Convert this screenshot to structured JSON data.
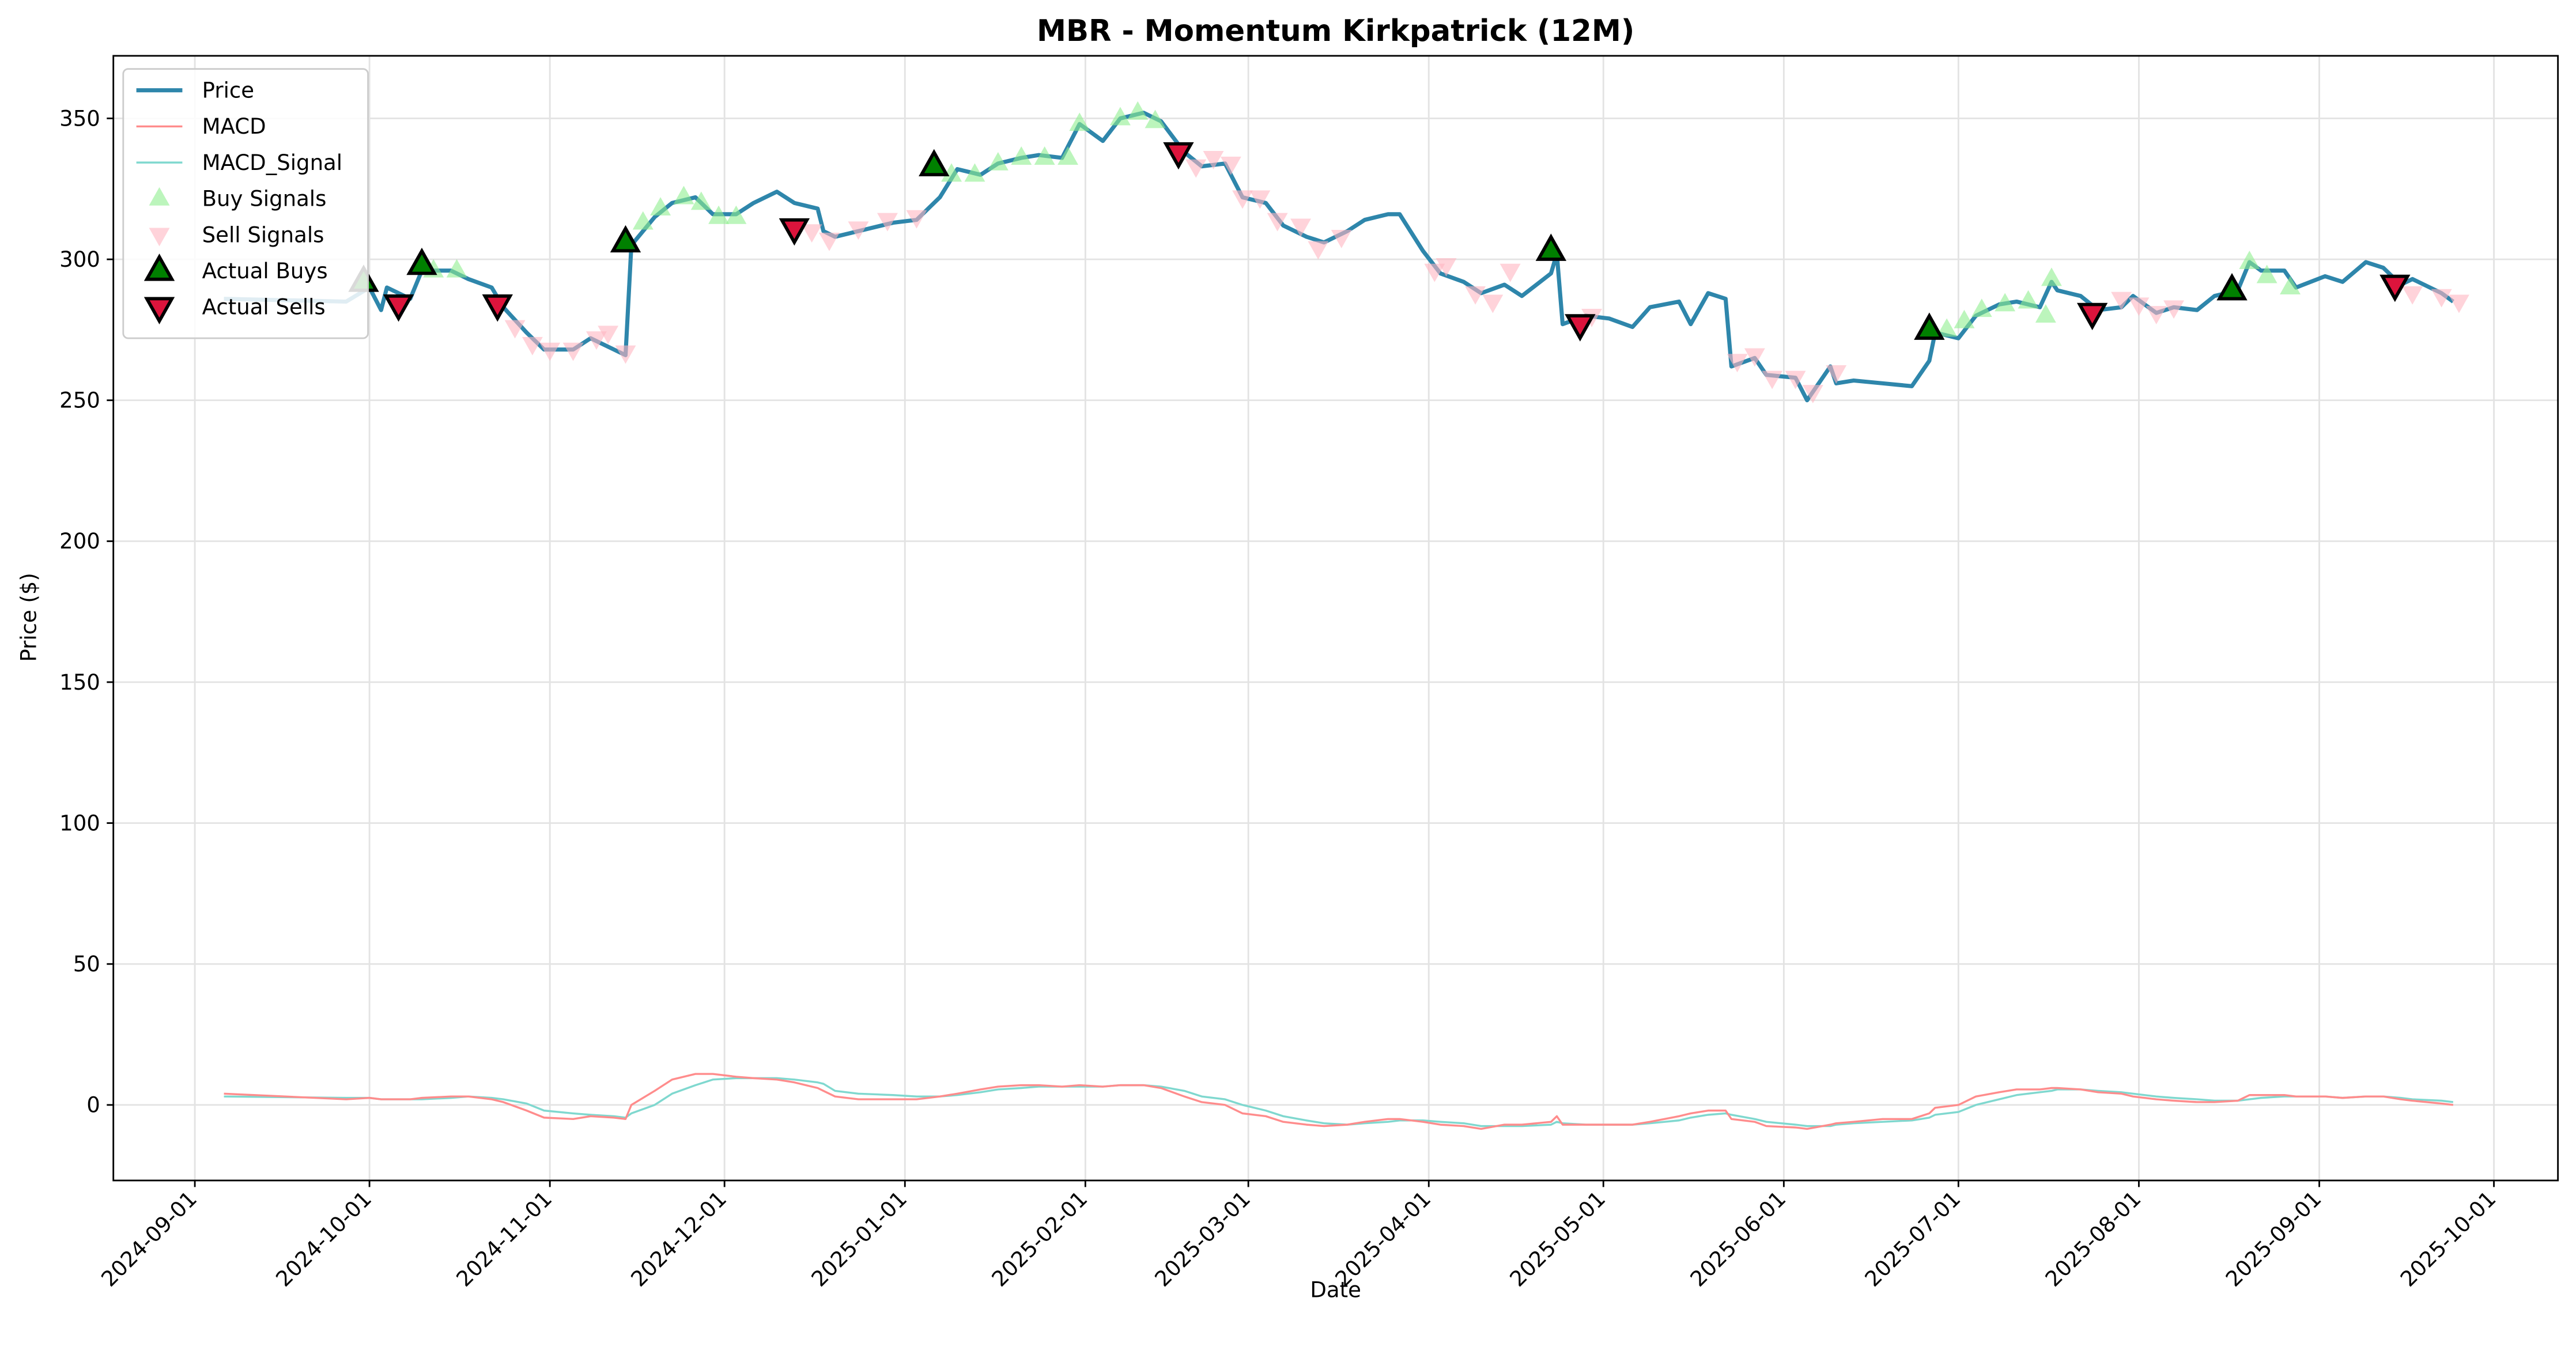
{
  "chart_data": {
    "type": "line",
    "title": "MBR - Momentum Kirkpatrick (12M)",
    "x_label": "Date",
    "y_label": "Price ($)",
    "grid": true,
    "legend": "upper left",
    "xlim": [
      "2024-08-18",
      "2025-10-12"
    ],
    "xticks": [
      "2024-09-01",
      "2024-10-01",
      "2024-11-01",
      "2024-12-01",
      "2025-01-01",
      "2025-02-01",
      "2025-03-01",
      "2025-04-01",
      "2025-05-01",
      "2025-06-01",
      "2025-07-01",
      "2025-08-01",
      "2025-09-01",
      "2025-10-01"
    ],
    "ylim": [
      -26.8,
      372.2
    ],
    "yticks": [
      0,
      50,
      100,
      150,
      200,
      250,
      300,
      350
    ],
    "x": [
      "2024-09-06",
      "2024-09-27",
      "2024-10-01",
      "2024-10-03",
      "2024-10-04",
      "2024-10-08",
      "2024-10-10",
      "2024-10-15",
      "2024-10-18",
      "2024-10-22",
      "2024-10-24",
      "2024-10-28",
      "2024-10-31",
      "2024-11-05",
      "2024-11-08",
      "2024-11-12",
      "2024-11-14",
      "2024-11-15",
      "2024-11-19",
      "2024-11-22",
      "2024-11-26",
      "2024-11-29",
      "2024-12-03",
      "2024-12-06",
      "2024-12-10",
      "2024-12-13",
      "2024-12-17",
      "2024-12-18",
      "2024-12-20",
      "2024-12-24",
      "2024-12-30",
      "2025-01-03",
      "2025-01-07",
      "2025-01-10",
      "2025-01-14",
      "2025-01-17",
      "2025-01-21",
      "2025-01-24",
      "2025-01-28",
      "2025-01-31",
      "2025-02-04",
      "2025-02-07",
      "2025-02-11",
      "2025-02-14",
      "2025-02-18",
      "2025-02-21",
      "2025-02-25",
      "2025-02-28",
      "2025-03-04",
      "2025-03-07",
      "2025-03-11",
      "2025-03-14",
      "2025-03-18",
      "2025-03-21",
      "2025-03-25",
      "2025-03-27",
      "2025-03-31",
      "2025-04-03",
      "2025-04-07",
      "2025-04-10",
      "2025-04-14",
      "2025-04-17",
      "2025-04-22",
      "2025-04-23",
      "2025-04-24",
      "2025-04-28",
      "2025-05-02",
      "2025-05-06",
      "2025-05-09",
      "2025-05-14",
      "2025-05-16",
      "2025-05-19",
      "2025-05-22",
      "2025-05-23",
      "2025-05-27",
      "2025-05-29",
      "2025-06-03",
      "2025-06-05",
      "2025-06-09",
      "2025-06-10",
      "2025-06-13",
      "2025-06-18",
      "2025-06-23",
      "2025-06-26",
      "2025-06-27",
      "2025-07-01",
      "2025-07-04",
      "2025-07-08",
      "2025-07-11",
      "2025-07-15",
      "2025-07-17",
      "2025-07-18",
      "2025-07-22",
      "2025-07-25",
      "2025-07-29",
      "2025-07-31",
      "2025-08-04",
      "2025-08-07",
      "2025-08-11",
      "2025-08-14",
      "2025-08-18",
      "2025-08-20",
      "2025-08-22",
      "2025-08-26",
      "2025-08-28",
      "2025-09-02",
      "2025-09-05",
      "2025-09-09",
      "2025-09-12",
      "2025-09-15",
      "2025-09-17",
      "2025-09-22",
      "2025-09-24"
    ],
    "series": [
      {
        "name": "Price",
        "color": "#2e86ab",
        "width": 2.5,
        "values": [
          286,
          285,
          290,
          282,
          290,
          286,
          296,
          296,
          293,
          290,
          283,
          274,
          268,
          268,
          272,
          268,
          266,
          305,
          315,
          320,
          322,
          316,
          316,
          320,
          324,
          320,
          318,
          310,
          308,
          310,
          313,
          314,
          322,
          332,
          330,
          334,
          336,
          337,
          336,
          348,
          342,
          350,
          352,
          349,
          338,
          333,
          334,
          322,
          320,
          312,
          308,
          306,
          310,
          314,
          316,
          316,
          303,
          295,
          292,
          288,
          291,
          287,
          295,
          302,
          277,
          280,
          279,
          276,
          283,
          285,
          277,
          288,
          286,
          262,
          265,
          259,
          258,
          250,
          262,
          256,
          257,
          256,
          255,
          264,
          274,
          272,
          280,
          284,
          285,
          283,
          292,
          289,
          287,
          282,
          283,
          287,
          281,
          283,
          282,
          287,
          289,
          299,
          296,
          296,
          290,
          294,
          292,
          299,
          297,
          291,
          293,
          288,
          285
        ]
      },
      {
        "name": "MACD",
        "color": "#ff8c8c",
        "width": 1.2,
        "values": [
          4,
          2,
          2.5,
          2,
          2,
          2,
          2.5,
          3,
          3,
          2,
          1,
          -2,
          -4.5,
          -5,
          -4,
          -4.5,
          -5,
          0,
          5,
          9,
          11,
          11,
          10,
          9.5,
          9,
          8,
          6,
          5,
          3,
          2,
          2,
          2,
          3,
          4,
          5.5,
          6.5,
          7,
          7,
          6.5,
          7,
          6.5,
          7,
          7,
          6,
          3,
          1,
          0,
          -3,
          -4,
          -6,
          -7,
          -7.5,
          -7,
          -6,
          -5,
          -5,
          -6,
          -7,
          -7.5,
          -8.5,
          -7,
          -7,
          -6,
          -4,
          -7,
          -7,
          -7,
          -7,
          -6,
          -4,
          -3,
          -2,
          -2,
          -5,
          -6,
          -7.5,
          -8,
          -8.5,
          -7,
          -6.5,
          -6,
          -5,
          -5,
          -3,
          -1,
          0,
          3,
          4.5,
          5.5,
          5.5,
          6,
          6,
          5.5,
          4.5,
          4,
          3,
          2,
          1.5,
          1,
          1,
          1.5,
          3.5,
          3.5,
          3.5,
          3,
          3,
          2.5,
          3,
          3,
          2,
          1.5,
          0.5,
          0
        ]
      },
      {
        "name": "MACD_Signal",
        "color": "#7fd8cf",
        "width": 1.2,
        "values": [
          3,
          2.5,
          2.5,
          2,
          2,
          2,
          2,
          2.5,
          3,
          2.5,
          2,
          0.5,
          -2,
          -3,
          -3.5,
          -4,
          -4.5,
          -3,
          0,
          4,
          7,
          9,
          9.5,
          9.5,
          9.5,
          9,
          8,
          7.5,
          5,
          4,
          3.5,
          3,
          3,
          3.5,
          4.5,
          5.5,
          6,
          6.5,
          6.5,
          6.5,
          6.5,
          7,
          7,
          6.5,
          5,
          3,
          2,
          0,
          -2,
          -4,
          -5.5,
          -6.5,
          -7,
          -6.5,
          -6,
          -5.5,
          -5.5,
          -6,
          -6.5,
          -7.5,
          -7.5,
          -7.5,
          -7,
          -6,
          -6.5,
          -7,
          -7,
          -7,
          -6.5,
          -5.5,
          -4.5,
          -3.5,
          -3,
          -3.5,
          -5,
          -6,
          -7,
          -7.5,
          -7.5,
          -7,
          -6.5,
          -6,
          -5.5,
          -4.5,
          -3.5,
          -2.5,
          0,
          2,
          3.5,
          4.5,
          5,
          5.5,
          5.5,
          5,
          4.5,
          4,
          3,
          2.5,
          2,
          1.5,
          1.5,
          2,
          2.5,
          3,
          3,
          3,
          2.5,
          3,
          3,
          2.5,
          2,
          1.5,
          1
        ]
      }
    ],
    "markers": [
      {
        "name": "Buy Signals",
        "color": "#90ee90",
        "marker": "up",
        "edge": false,
        "x": [
          "2024-10-12",
          "2024-10-16",
          "2024-11-17",
          "2024-11-20",
          "2024-11-24",
          "2024-11-27",
          "2024-11-30",
          "2024-12-03",
          "2025-01-09",
          "2025-01-13",
          "2025-01-17",
          "2025-01-21",
          "2025-01-25",
          "2025-01-29",
          "2025-01-31",
          "2025-02-07",
          "2025-02-10",
          "2025-02-13",
          "2025-06-29",
          "2025-07-02",
          "2025-07-05",
          "2025-07-09",
          "2025-07-13",
          "2025-07-17",
          "2025-07-16",
          "2025-08-20",
          "2025-08-23",
          "2025-08-27"
        ],
        "values": [
          296,
          296,
          313,
          318,
          322,
          320,
          315,
          315,
          330,
          330,
          334,
          336,
          336,
          336,
          348,
          350,
          352,
          349,
          275,
          278,
          282,
          284,
          285,
          293,
          280,
          299,
          294,
          290
        ]
      },
      {
        "name": "Sell Signals",
        "color": "#ffb6c1",
        "marker": "down",
        "edge": false,
        "x": [
          "2024-10-26",
          "2024-10-29",
          "2024-11-01",
          "2024-11-05",
          "2024-11-09",
          "2024-11-11",
          "2024-11-14",
          "2024-12-16",
          "2024-12-19",
          "2024-12-24",
          "2024-12-29",
          "2025-01-03",
          "2025-02-20",
          "2025-02-23",
          "2025-02-26",
          "2025-02-28",
          "2025-03-03",
          "2025-03-06",
          "2025-03-10",
          "2025-03-13",
          "2025-03-17",
          "2025-04-02",
          "2025-04-04",
          "2025-04-09",
          "2025-04-12",
          "2025-04-15",
          "2025-04-29",
          "2025-05-24",
          "2025-05-27",
          "2025-05-30",
          "2025-06-03",
          "2025-06-06",
          "2025-06-10",
          "2025-07-29",
          "2025-08-01",
          "2025-08-04",
          "2025-08-07",
          "2025-09-17",
          "2025-09-22",
          "2025-09-25"
        ],
        "values": [
          276,
          270,
          268,
          268,
          272,
          274,
          267,
          310,
          307,
          311,
          314,
          315,
          333,
          336,
          334,
          322,
          322,
          314,
          312,
          304,
          308,
          296,
          298,
          288,
          285,
          296,
          280,
          264,
          266,
          258,
          258,
          253,
          260,
          286,
          284,
          281,
          283,
          288,
          287,
          285
        ]
      },
      {
        "name": "Actual Buys",
        "color": "#008000",
        "marker": "up",
        "edge": true,
        "x": [
          "2024-09-30",
          "2024-10-10",
          "2024-11-14",
          "2025-01-06",
          "2025-04-22",
          "2025-06-26",
          "2025-08-17"
        ],
        "values": [
          292,
          298,
          306,
          333,
          303,
          275,
          289
        ]
      },
      {
        "name": "Actual Sells",
        "color": "#dc143c",
        "marker": "down",
        "edge": true,
        "x": [
          "2024-10-06",
          "2024-10-23",
          "2024-12-13",
          "2025-02-17",
          "2025-04-27",
          "2025-07-24",
          "2025-09-14"
        ],
        "values": [
          284,
          284,
          311,
          338,
          277,
          281,
          291
        ]
      }
    ]
  }
}
